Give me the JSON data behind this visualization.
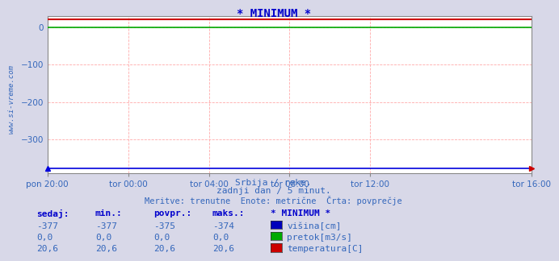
{
  "title": "* MINIMUM *",
  "title_color": "#0000cc",
  "bg_color": "#d8d8e8",
  "plot_bg_color": "#ffffff",
  "grid_color": "#ffaaaa",
  "grid_linestyle": "--",
  "ylim": [
    -390,
    30
  ],
  "yticks": [
    0,
    -100,
    -200,
    -300
  ],
  "xlim": [
    0,
    288
  ],
  "xtick_labels": [
    "pon 20:00",
    "tor 00:00",
    "tor 04:00",
    "tor 08:00",
    "tor 12:00",
    "tor 16:00"
  ],
  "xtick_positions": [
    0,
    48,
    96,
    144,
    192,
    288
  ],
  "n_points": 289,
  "visina_value": -377,
  "pretok_value": 0.0,
  "temperatura_value": 20.6,
  "line_blue_color": "#0000dd",
  "line_green_color": "#00aa00",
  "line_red_color": "#cc0000",
  "watermark": "www.si-vreme.com",
  "subtitle1": "Srbija / reke.",
  "subtitle2": "zadnji dan / 5 minut.",
  "subtitle3": "Meritve: trenutne  Enote: metrične  Črta: povprečje",
  "table_headers": [
    "sedaj:",
    "min.:",
    "povpr.:",
    "maks.:",
    "* MINIMUM *"
  ],
  "row1": [
    "-377",
    "-377",
    "-375",
    "-374"
  ],
  "row2": [
    "0,0",
    "0,0",
    "0,0",
    "0,0"
  ],
  "row3": [
    "20,6",
    "20,6",
    "20,6",
    "20,6"
  ],
  "legend_labels": [
    "višina[cm]",
    "pretok[m3/s]",
    "temperatura[C]"
  ],
  "legend_colors": [
    "#0000bb",
    "#00aa00",
    "#cc0000"
  ],
  "text_color": "#3366bb",
  "header_color": "#0000cc",
  "table_num_color": "#3366bb"
}
